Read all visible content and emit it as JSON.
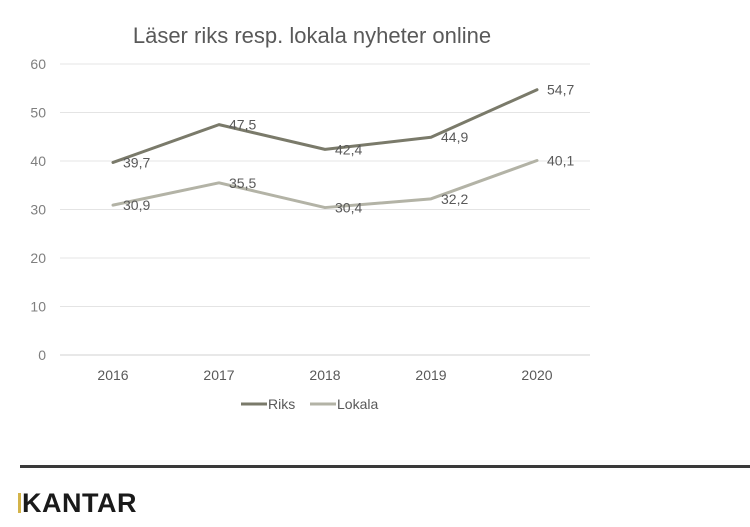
{
  "chart_data": {
    "type": "line",
    "title": "Läser riks resp. lokala nyheter online",
    "categories": [
      "2016",
      "2017",
      "2018",
      "2019",
      "2020"
    ],
    "series": [
      {
        "name": "Riks",
        "values": [
          39.7,
          47.5,
          42.4,
          44.9,
          54.7
        ],
        "labels": [
          "39,7",
          "47,5",
          "42,4",
          "44,9",
          "54,7"
        ],
        "color": "#7a7a6a"
      },
      {
        "name": "Lokala",
        "values": [
          30.9,
          35.5,
          30.4,
          32.2,
          40.1
        ],
        "labels": [
          "30,9",
          "35,5",
          "30,4",
          "32,2",
          "40,1"
        ],
        "color": "#b3b3a6"
      }
    ],
    "yticks": [
      "0",
      "10",
      "20",
      "30",
      "40",
      "50",
      "60"
    ],
    "ylim": [
      0,
      60
    ],
    "xlabel": "",
    "ylabel": "",
    "grid": true,
    "legend_position": "bottom"
  },
  "brand": {
    "logo_text": "KANTAR",
    "accent_color": "#d4b44a"
  }
}
